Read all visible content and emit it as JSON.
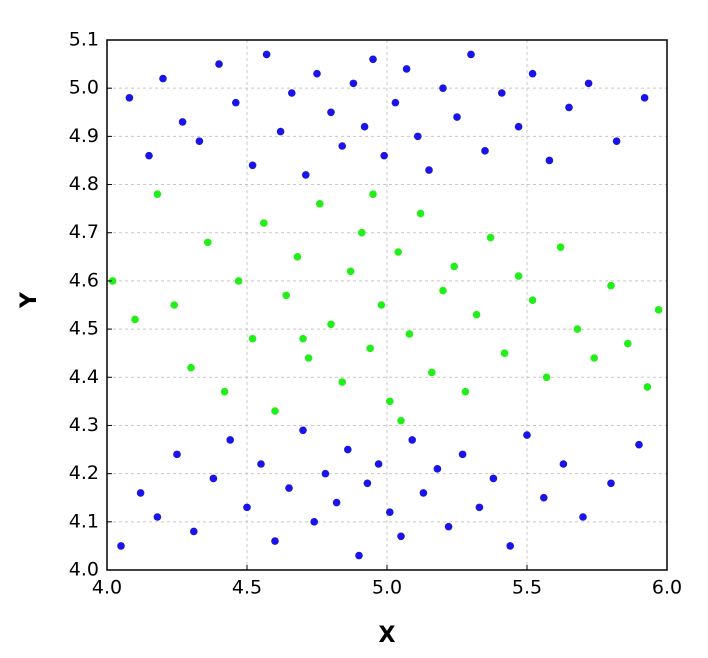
{
  "chart_data": {
    "type": "scatter",
    "x_label": "X",
    "y_label": "Y",
    "xlim": [
      4.0,
      6.0
    ],
    "xticks": [
      {
        "value": 4,
        "label": "4.0"
      },
      4.5,
      {
        "value": 5,
        "label": "5.0"
      },
      5.5,
      {
        "value": 6,
        "label": "6.0"
      }
    ],
    "ylim": [
      4.0,
      5.1
    ],
    "yticks": [
      {
        "value": 4,
        "label": "4.0"
      },
      4.1,
      4.2,
      4.3,
      4.4,
      4.5,
      4.6,
      4.7,
      4.8,
      4.9,
      {
        "value": 5,
        "label": "5.0"
      },
      5.1
    ],
    "grid": true,
    "series": [
      {
        "color": "#1a14e6",
        "x": [
          4.05,
          4.12,
          4.18,
          4.25,
          4.31,
          4.38,
          4.44,
          4.5,
          4.55,
          4.6,
          4.65,
          4.7,
          4.74,
          4.78,
          4.82,
          4.86,
          4.9,
          4.93,
          4.97,
          5.01,
          5.05,
          5.09,
          5.13,
          5.18,
          5.22,
          5.27,
          5.33,
          5.38,
          5.44,
          5.5,
          5.56,
          5.63,
          5.7,
          5.8,
          5.9,
          4.08,
          4.15,
          4.2,
          4.27,
          4.33,
          4.4,
          4.46,
          4.52,
          4.57,
          4.62,
          4.66,
          4.71,
          4.75,
          4.8,
          4.84,
          4.88,
          4.92,
          4.95,
          4.99,
          5.03,
          5.07,
          5.11,
          5.15,
          5.2,
          5.25,
          5.3,
          5.35,
          5.41,
          5.47,
          5.52,
          5.58,
          5.65,
          5.72,
          5.82,
          5.92
        ],
        "y": [
          4.05,
          4.16,
          4.11,
          4.24,
          4.08,
          4.19,
          4.27,
          4.13,
          4.22,
          4.06,
          4.17,
          4.29,
          4.1,
          4.2,
          4.14,
          4.25,
          4.03,
          4.18,
          4.22,
          4.12,
          4.07,
          4.27,
          4.16,
          4.21,
          4.09,
          4.24,
          4.13,
          4.19,
          4.05,
          4.28,
          4.15,
          4.22,
          4.11,
          4.18,
          4.26,
          4.98,
          4.86,
          5.02,
          4.93,
          4.89,
          5.05,
          4.97,
          4.84,
          5.07,
          4.91,
          4.99,
          4.82,
          5.03,
          4.95,
          4.88,
          5.01,
          4.92,
          5.06,
          4.86,
          4.97,
          5.04,
          4.9,
          4.83,
          5.0,
          4.94,
          5.07,
          4.87,
          4.99,
          4.92,
          5.03,
          4.85,
          4.96,
          5.01,
          4.89,
          4.98
        ]
      },
      {
        "color": "#22ee1a",
        "x": [
          4.02,
          4.1,
          4.18,
          4.24,
          4.3,
          4.36,
          4.42,
          4.47,
          4.52,
          4.56,
          4.6,
          4.64,
          4.68,
          4.72,
          4.76,
          4.8,
          4.84,
          4.87,
          4.91,
          4.94,
          4.98,
          5.01,
          5.04,
          5.08,
          5.12,
          5.16,
          5.2,
          5.24,
          5.28,
          5.32,
          5.37,
          5.42,
          5.47,
          5.52,
          5.57,
          5.62,
          5.68,
          5.74,
          5.8,
          5.86,
          5.93,
          5.97,
          4.95,
          5.05,
          4.7
        ],
        "y": [
          4.6,
          4.52,
          4.78,
          4.55,
          4.42,
          4.68,
          4.37,
          4.6,
          4.48,
          4.72,
          4.33,
          4.57,
          4.65,
          4.44,
          4.76,
          4.51,
          4.39,
          4.62,
          4.7,
          4.46,
          4.55,
          4.35,
          4.66,
          4.49,
          4.74,
          4.41,
          4.58,
          4.63,
          4.37,
          4.53,
          4.69,
          4.45,
          4.61,
          4.56,
          4.4,
          4.67,
          4.5,
          4.44,
          4.59,
          4.47,
          4.38,
          4.54,
          4.78,
          4.31,
          4.48
        ]
      }
    ]
  }
}
